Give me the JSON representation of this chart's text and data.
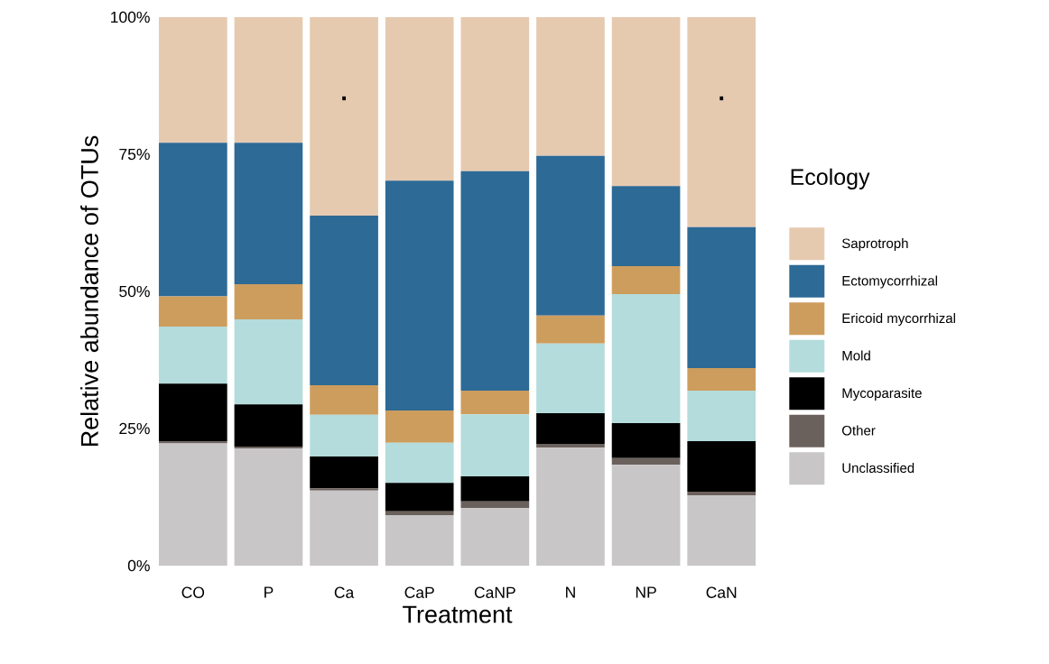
{
  "chart_data": {
    "type": "bar",
    "stacked": true,
    "xlabel": "Treatment",
    "ylabel": "Relative abundance of OTUs",
    "legend_title": "Ecology",
    "legend": "right",
    "categories": [
      "CO",
      "P",
      "Ca",
      "CaP",
      "CaNP",
      "N",
      "NP",
      "CaN"
    ],
    "ylim": [
      0,
      100
    ],
    "yticks": [
      {
        "value": 0,
        "label": "0%"
      },
      {
        "value": 25,
        "label": "25%"
      },
      {
        "value": 50,
        "label": "50%"
      },
      {
        "value": 75,
        "label": "75%"
      },
      {
        "value": 100,
        "label": "100%"
      }
    ],
    "series": [
      {
        "name": "Unclassified",
        "color": "#c8c6c7",
        "values": [
          22.3,
          21.4,
          13.7,
          9.2,
          10.5,
          21.5,
          18.4,
          12.8
        ]
      },
      {
        "name": "Other",
        "color": "#6b615c",
        "values": [
          0.3,
          0.3,
          0.4,
          0.7,
          1.2,
          0.7,
          1.2,
          0.7
        ]
      },
      {
        "name": "Mycoparasite",
        "color": "#000000",
        "values": [
          10.6,
          7.7,
          5.8,
          5.2,
          4.6,
          5.6,
          6.4,
          9.2
        ]
      },
      {
        "name": "Mold",
        "color": "#b4dcdc",
        "values": [
          10.4,
          15.5,
          7.6,
          7.3,
          11.3,
          12.7,
          23.5,
          9.2
        ]
      },
      {
        "name": "Ericoid mycorrhizal",
        "color": "#cd9d5e",
        "values": [
          5.5,
          6.4,
          5.4,
          5.9,
          4.3,
          5.1,
          5.1,
          4.1
        ]
      },
      {
        "name": "Ectomycorrhizal",
        "color": "#2d6a96",
        "values": [
          28.0,
          25.8,
          30.9,
          41.9,
          40.0,
          29.1,
          14.6,
          25.7
        ]
      },
      {
        "name": "Saprotroph",
        "color": "#e6cab0",
        "values": [
          22.9,
          22.9,
          36.2,
          29.8,
          28.1,
          25.3,
          30.8,
          38.3
        ]
      }
    ],
    "annotations": [
      ".",
      "."
    ]
  }
}
